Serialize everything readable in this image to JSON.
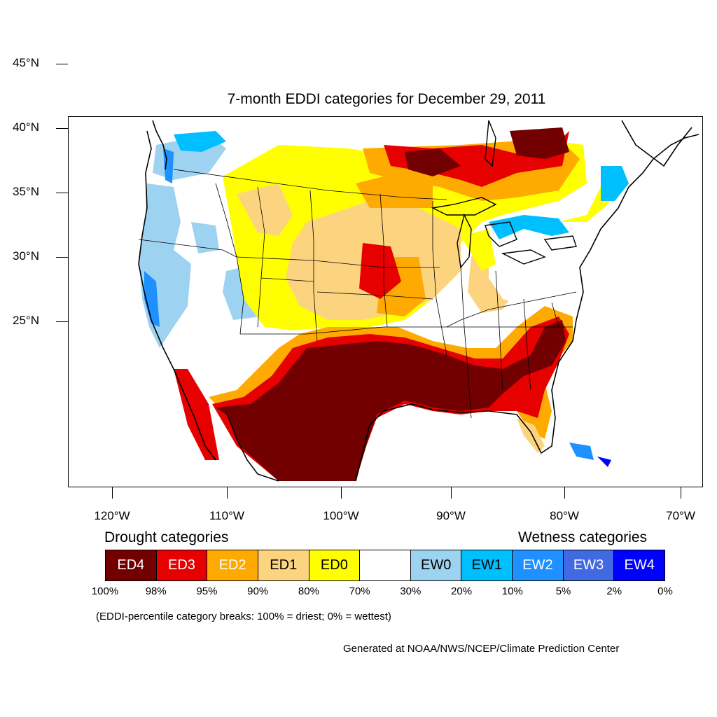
{
  "title": "7-month EDDI categories for December 29, 2011",
  "map": {
    "lat_labels": [
      "45°N",
      "40°N",
      "35°N",
      "30°N",
      "25°N"
    ],
    "lon_labels": [
      "120°W",
      "110°W",
      "100°W",
      "90°W",
      "80°W",
      "70°W"
    ]
  },
  "legend": {
    "drought_heading": "Drought categories",
    "wetness_heading": "Wetness categories",
    "categories": [
      {
        "label": "ED4",
        "color": "#730000",
        "text_color": "#ffffff"
      },
      {
        "label": "ED3",
        "color": "#e60000",
        "text_color": "#ffffff"
      },
      {
        "label": "ED2",
        "color": "#ffaa00",
        "text_color": "#ffffff"
      },
      {
        "label": "ED1",
        "color": "#fcd37f",
        "text_color": "#000000"
      },
      {
        "label": "ED0",
        "color": "#ffff00",
        "text_color": "#000000"
      },
      {
        "label": "",
        "color": "#ffffff",
        "text_color": "#000000"
      },
      {
        "label": "EW0",
        "color": "#9dd3f0",
        "text_color": "#000000"
      },
      {
        "label": "EW1",
        "color": "#00bfff",
        "text_color": "#000000"
      },
      {
        "label": "EW2",
        "color": "#1e90ff",
        "text_color": "#ffffff"
      },
      {
        "label": "EW3",
        "color": "#4169e1",
        "text_color": "#ffffff"
      },
      {
        "label": "EW4",
        "color": "#0000ff",
        "text_color": "#ffffff"
      }
    ],
    "breaks": [
      "100%",
      "98%",
      "95%",
      "90%",
      "80%",
      "70%",
      "30%",
      "20%",
      "10%",
      "5%",
      "2%",
      "0%"
    ]
  },
  "note": "(EDDI-percentile category breaks: 100% = driest; 0% = wettest)",
  "credit": "Generated at NOAA/NWS/NCEP/Climate Prediction Center"
}
